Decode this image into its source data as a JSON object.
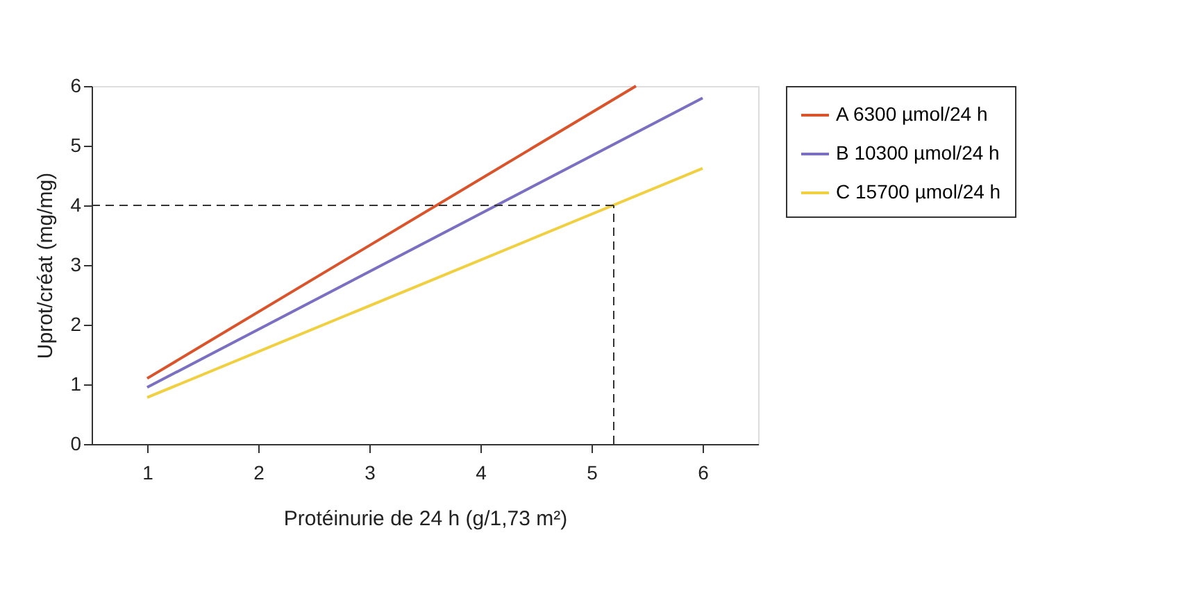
{
  "chart_data": {
    "type": "line",
    "xlabel": "Protéinurie de 24 h (g/1,73 m²)",
    "ylabel": "Uprot/créat (mg/mg)",
    "xlim": [
      0.5,
      6.5
    ],
    "ylim": [
      0,
      6
    ],
    "xticks": [
      1,
      2,
      3,
      4,
      5,
      6
    ],
    "yticks": [
      0,
      1,
      2,
      3,
      4,
      5,
      6
    ],
    "grid": false,
    "legend": "right",
    "marker": "none",
    "line_style": "solid",
    "series": [
      {
        "name": "A 6300 µmol/24 h",
        "color": "#d9532b",
        "x": [
          1,
          5.4
        ],
        "values": [
          1.1,
          6.0
        ]
      },
      {
        "name": "B 10300 µmol/24 h",
        "color": "#7a6fc0",
        "x": [
          1,
          6
        ],
        "values": [
          0.95,
          5.8
        ]
      },
      {
        "name": "C 15700 µmol/24 h",
        "color": "#f0d040",
        "x": [
          1,
          6
        ],
        "values": [
          0.78,
          4.62
        ]
      }
    ],
    "ref_lines": [
      {
        "axis": "y",
        "value": 4,
        "color": "#333333",
        "line_style": "dashed"
      },
      {
        "axis": "x",
        "value": 5.2,
        "color": "#333333",
        "line_style": "dashed"
      }
    ]
  }
}
